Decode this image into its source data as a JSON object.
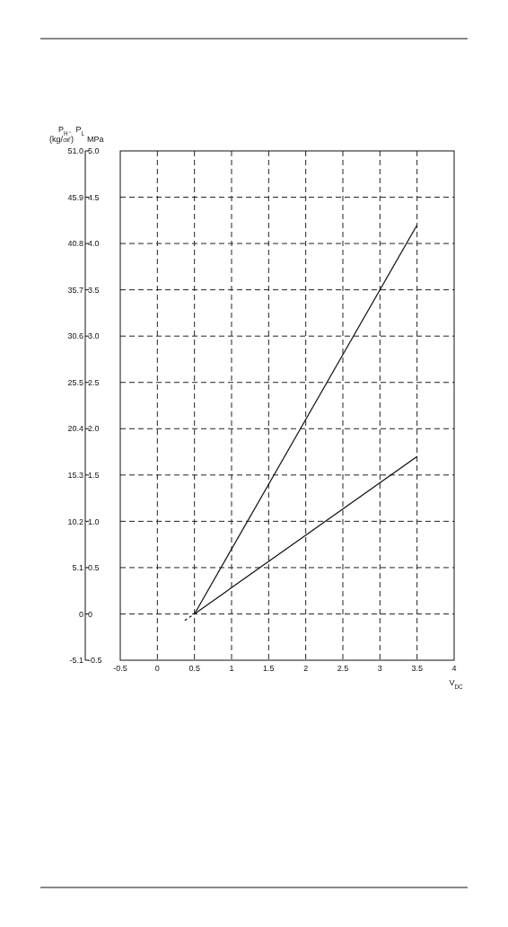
{
  "chart_data": {
    "type": "line",
    "xlabel": "V$_{DC}$",
    "ylabel": "MPa",
    "y2label": "(kg/㎠)",
    "annotations": [
      "P$_{H}$、P$_{L}$"
    ],
    "xlim": [
      -0.5,
      4
    ],
    "xticks": [
      -0.5,
      0,
      0.5,
      1,
      1.5,
      2,
      2.5,
      3,
      3.5,
      4
    ],
    "ylim": [
      -0.5,
      5.0
    ],
    "yticks": [
      -0.5,
      0,
      0.5,
      {
        "value": 1.0,
        "label": "1.0"
      },
      1.5,
      {
        "value": 2.0,
        "label": "2.0"
      },
      2.5,
      {
        "value": 3.0,
        "label": "3.0"
      },
      3.5,
      {
        "value": 4.0,
        "label": "4.0"
      },
      4.5,
      {
        "value": 5.0,
        "label": "5.0"
      }
    ],
    "y2lim": [
      -5.1,
      51.0
    ],
    "y2ticks": [
      -5.1,
      0,
      5.1,
      10.2,
      15.3,
      20.4,
      25.5,
      30.6,
      35.7,
      40.8,
      45.9,
      {
        "value": 51.0,
        "label": "51.0"
      }
    ],
    "grid": true,
    "marker": "none",
    "series": [
      {
        "x": [
          0.5,
          3.5
        ],
        "values": [
          0,
          4.2
        ],
        "color": "#111111",
        "line_style": "solid"
      },
      {
        "x": [
          0.5,
          3.5
        ],
        "values": [
          0,
          1.7
        ],
        "color": "#111111",
        "line_style": "solid"
      },
      {
        "x": [
          0.37,
          0.5
        ],
        "values": [
          -0.07,
          0
        ],
        "color": "#111111",
        "line_style": "dashed"
      }
    ]
  }
}
